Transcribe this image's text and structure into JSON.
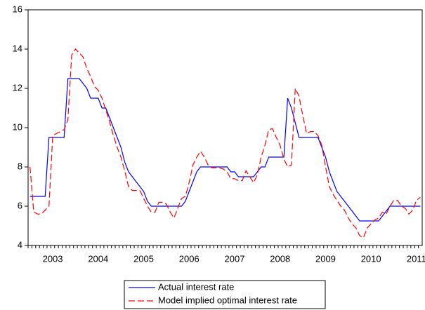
{
  "chart_data": {
    "type": "line",
    "categories": [
      null,
      null,
      null,
      null,
      null,
      null,
      "2003",
      null,
      null,
      null,
      null,
      null,
      null,
      null,
      null,
      null,
      null,
      null,
      "2004",
      null,
      null,
      null,
      null,
      null,
      null,
      null,
      null,
      null,
      null,
      null,
      "2005",
      null,
      null,
      null,
      null,
      null,
      null,
      null,
      null,
      null,
      null,
      null,
      "2006",
      null,
      null,
      null,
      null,
      null,
      null,
      null,
      null,
      null,
      null,
      null,
      "2007",
      null,
      null,
      null,
      null,
      null,
      null,
      null,
      null,
      null,
      null,
      null,
      "2008",
      null,
      null,
      null,
      null,
      null,
      null,
      null,
      null,
      null,
      null,
      null,
      "2009",
      null,
      null,
      null,
      null,
      null,
      null,
      null,
      null,
      null,
      null,
      null,
      "2010",
      null,
      null,
      null,
      null,
      null,
      null,
      null,
      null,
      null,
      null,
      null,
      "2011",
      null
    ],
    "series": [
      {
        "name": "Actual interest rate",
        "color": "#0000ff",
        "dash": "solid",
        "values": [
          6.5,
          6.5,
          6.5,
          6.5,
          6.5,
          9.5,
          9.5,
          9.5,
          9.5,
          9.5,
          12.5,
          12.5,
          12.5,
          12.5,
          12.25,
          12.0,
          11.5,
          11.5,
          11.5,
          11.0,
          11.0,
          10.5,
          10.0,
          9.5,
          9.0,
          8.25,
          7.75,
          7.5,
          7.25,
          7.0,
          6.75,
          6.25,
          6.0,
          6.0,
          6.0,
          6.0,
          6.0,
          6.0,
          6.0,
          6.0,
          6.0,
          6.25,
          6.75,
          7.25,
          7.75,
          8.0,
          8.0,
          8.0,
          8.0,
          8.0,
          8.0,
          8.0,
          8.0,
          7.75,
          7.75,
          7.5,
          7.5,
          7.5,
          7.5,
          7.5,
          7.75,
          8.0,
          8.0,
          8.5,
          8.5,
          8.5,
          8.5,
          8.5,
          11.5,
          11.0,
          10.25,
          9.5,
          9.5,
          9.5,
          9.5,
          9.5,
          9.5,
          9.0,
          8.5,
          7.75,
          7.25,
          6.75,
          6.5,
          6.25,
          6.0,
          5.75,
          5.5,
          5.25,
          5.25,
          5.25,
          5.25,
          5.25,
          5.25,
          5.5,
          5.75,
          6.0,
          6.0,
          6.0,
          6.0,
          6.0,
          6.0,
          6.0,
          6.0,
          6.0
        ]
      },
      {
        "name": "Model implied optimal interest rate",
        "color": "#ff0000",
        "dash": "dashed",
        "values": [
          8.0,
          5.7,
          5.6,
          5.6,
          5.8,
          6.0,
          9.6,
          9.7,
          9.8,
          9.9,
          10.4,
          13.7,
          14.0,
          13.8,
          13.6,
          13.0,
          12.6,
          12.1,
          11.9,
          11.5,
          10.9,
          10.3,
          9.6,
          9.0,
          8.5,
          7.8,
          7.0,
          6.8,
          6.8,
          6.8,
          6.4,
          6.0,
          5.7,
          5.7,
          6.2,
          6.2,
          6.1,
          5.7,
          5.4,
          5.9,
          6.4,
          6.5,
          7.2,
          8.1,
          8.5,
          8.8,
          8.5,
          8.1,
          7.95,
          7.95,
          7.95,
          7.9,
          7.75,
          7.4,
          7.4,
          7.3,
          7.3,
          7.8,
          7.5,
          7.2,
          7.6,
          8.5,
          9.1,
          9.9,
          9.95,
          9.5,
          9.1,
          8.4,
          8.0,
          8.1,
          12.0,
          11.6,
          10.6,
          9.7,
          9.8,
          9.8,
          9.6,
          9.1,
          8.0,
          7.0,
          6.6,
          6.3,
          6.0,
          5.8,
          5.4,
          5.1,
          4.9,
          4.5,
          4.4,
          4.9,
          5.1,
          5.3,
          5.4,
          5.7,
          5.6,
          6.0,
          6.3,
          6.3,
          6.0,
          5.9,
          5.6,
          5.8,
          6.3,
          6.45
        ]
      }
    ],
    "ylim": [
      4,
      16
    ],
    "yticks": [
      4,
      6,
      8,
      10,
      12,
      14,
      16
    ],
    "grid": false,
    "legend": "bottom"
  }
}
